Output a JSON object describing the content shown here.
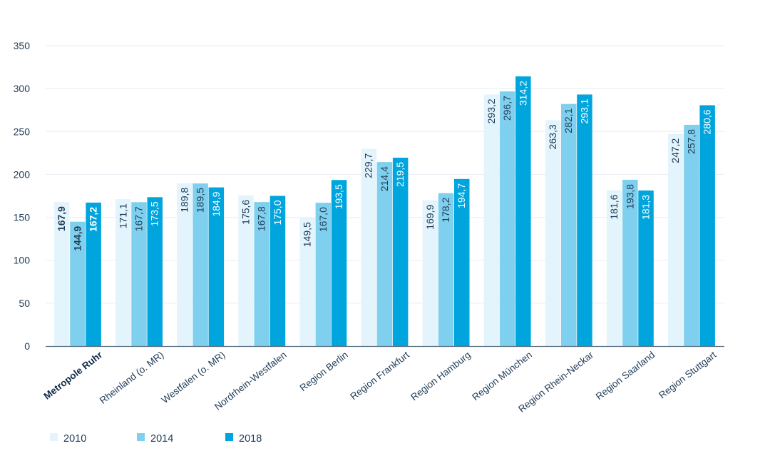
{
  "chart_data": {
    "type": "bar",
    "categories": [
      "Metropole Ruhr",
      "Rheinland (o. MR)",
      "Westfalen (o. MR)",
      "Nordrhein-Westfalen",
      "Region Berlin",
      "Region Frankfurt",
      "Region Hamburg",
      "Region München",
      "Region Rhein-Neckar",
      "Region Saarland",
      "Region Stuttgart"
    ],
    "highlight_category": "Metropole Ruhr",
    "series": [
      {
        "name": "2010",
        "color": "#e3f4fc",
        "values": [
          167.9,
          171.1,
          189.8,
          175.6,
          149.5,
          229.7,
          169.9,
          293.2,
          263.3,
          181.6,
          247.2
        ],
        "labels": [
          "167,9",
          "171,1",
          "189,8",
          "175,6",
          "149,5",
          "229,7",
          "169,9",
          "293,2",
          "263,3",
          "181,6",
          "247,2"
        ]
      },
      {
        "name": "2014",
        "color": "#7fd0ee",
        "values": [
          144.9,
          167.7,
          189.5,
          167.8,
          167.0,
          214.4,
          178.2,
          296.7,
          282.1,
          193.8,
          257.8
        ],
        "labels": [
          "144,9",
          "167,7",
          "189,5",
          "167,8",
          "167,0",
          "214,4",
          "178,2",
          "296,7",
          "282,1",
          "193,8",
          "257,8"
        ]
      },
      {
        "name": "2018",
        "color": "#00a5de",
        "values": [
          167.2,
          173.5,
          184.9,
          175.0,
          193.5,
          219.5,
          194.7,
          314.2,
          293.1,
          181.3,
          280.6
        ],
        "labels": [
          "167,2",
          "173,5",
          "184,9",
          "175,0",
          "193,5",
          "219,5",
          "194,7",
          "314,2",
          "293,1",
          "181,3",
          "280,6"
        ]
      }
    ],
    "y_ticks": [
      "0",
      "50",
      "100",
      "150",
      "200",
      "250",
      "300",
      "350"
    ],
    "ylim": [
      0,
      350
    ],
    "grid": true,
    "legend_position": "bottom-left",
    "colors": {
      "text": "#1f3b57",
      "axis": "#5a6f82",
      "grid": "#e8eef3",
      "label_dark": "#1f3b57",
      "label_light": "#ffffff"
    }
  }
}
